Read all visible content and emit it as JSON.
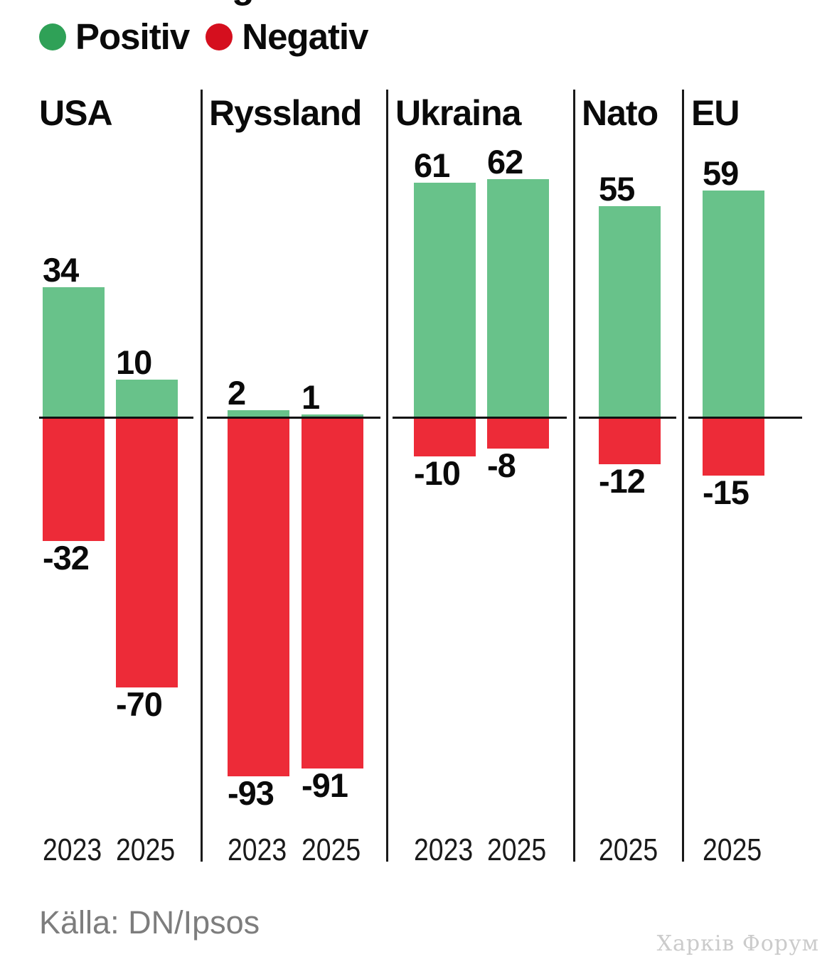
{
  "cropped_title_fragment": "g",
  "legend": {
    "items": [
      {
        "label": "Positiv",
        "color": "#2FA157"
      },
      {
        "label": "Negativ",
        "color": "#D50F1E"
      }
    ]
  },
  "colors": {
    "positive_bar": "#68C28A",
    "negative_bar": "#ED2B38",
    "axis_line": "#111111",
    "divider_line": "#1a1a1a",
    "source_text": "#7d7d7d",
    "watermark_text": "#cbcbcb"
  },
  "footer": {
    "source": "Källa: DN/Ipsos",
    "watermark": "Харків Форум"
  },
  "chart_data": {
    "type": "bar",
    "variant": "diverging-grouped-vertical",
    "title": "",
    "legend_entries": [
      "Positiv",
      "Negativ"
    ],
    "legend_position": "top-left",
    "grid": false,
    "zero_baseline": true,
    "value_range_hint": [
      -93,
      62
    ],
    "groups": [
      {
        "label": "USA",
        "bars": [
          {
            "year": "2023",
            "positive": 34,
            "negative": -32
          },
          {
            "year": "2025",
            "positive": 10,
            "negative": -70
          }
        ]
      },
      {
        "label": "Ryssland",
        "bars": [
          {
            "year": "2023",
            "positive": 2,
            "negative": -93
          },
          {
            "year": "2025",
            "positive": 1,
            "negative": -91
          }
        ]
      },
      {
        "label": "Ukraina",
        "bars": [
          {
            "year": "2023",
            "positive": 61,
            "negative": -10
          },
          {
            "year": "2025",
            "positive": 62,
            "negative": -8
          }
        ]
      },
      {
        "label": "Nato",
        "bars": [
          {
            "year": "2025",
            "positive": 55,
            "negative": -12
          }
        ]
      },
      {
        "label": "EU",
        "bars": [
          {
            "year": "2025",
            "positive": 59,
            "negative": -15
          }
        ]
      }
    ],
    "source": "Källa: DN/Ipsos"
  }
}
